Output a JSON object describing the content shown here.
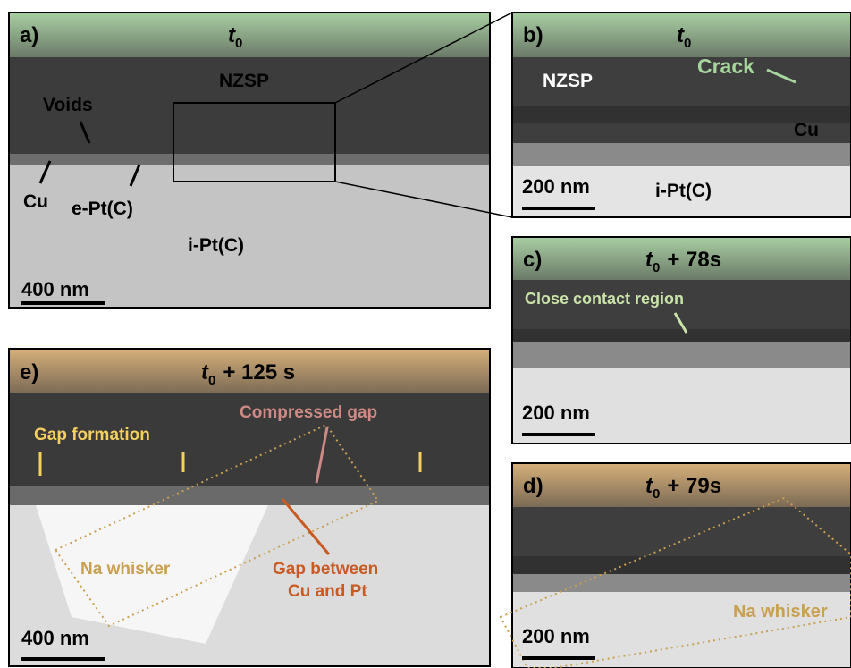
{
  "panels": [
    {
      "label": "a)",
      "time": {
        "base": "t",
        "sub": "0"
      },
      "scale_bar": "400 nm",
      "annotations": [
        "NZSP",
        "Voids",
        "Cu",
        "e-Pt(C)",
        "i-Pt(C)"
      ]
    },
    {
      "label": "b)",
      "time": {
        "base": "t",
        "sub": "0"
      },
      "scale_bar": "200 nm",
      "annotations": [
        "NZSP",
        "Crack",
        "Cu",
        "i-Pt(C)"
      ]
    },
    {
      "label": "c)",
      "time": {
        "base": "t",
        "sub": "0",
        "suffix": "+ 78s"
      },
      "scale_bar": "200 nm",
      "annotations": [
        "Close contact region"
      ]
    },
    {
      "label": "d)",
      "time": {
        "base": "t",
        "sub": "0",
        "suffix": "+ 79s"
      },
      "scale_bar": "200 nm",
      "annotations": [
        "Na whisker"
      ]
    },
    {
      "label": "e)",
      "time": {
        "base": "t",
        "sub": "0",
        "suffix": "+ 125 s"
      },
      "scale_bar": "400 nm",
      "annotations": [
        "Gap formation",
        "Compressed gap",
        "Na whisker",
        "Gap between",
        "Cu and Pt"
      ]
    }
  ]
}
